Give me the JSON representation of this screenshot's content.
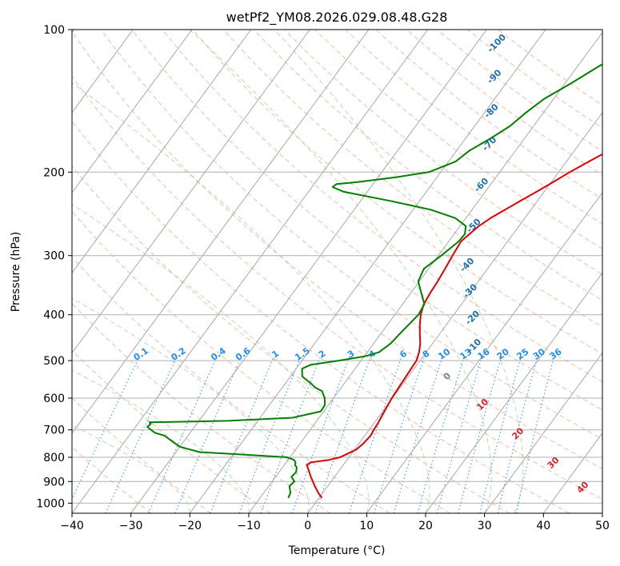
{
  "chart_data": {
    "type": "line",
    "title": "wetPf2_YM08.2026.029.08.48.G28",
    "xlabel": "Temperature (°C)",
    "ylabel": "Pressure (hPa)",
    "xlim": [
      -40,
      50
    ],
    "ylim": [
      1050,
      100
    ],
    "y_scale": "log",
    "grid": true,
    "x_ticks": [
      -40,
      -30,
      -20,
      -10,
      0,
      10,
      20,
      30,
      40,
      50
    ],
    "y_ticks": [
      100,
      200,
      300,
      400,
      500,
      600,
      700,
      800,
      900,
      1000
    ],
    "x_tick_labels": [
      "−40",
      "−30",
      "−20",
      "−10",
      "0",
      "10",
      "20",
      "30",
      "40",
      "50"
    ],
    "y_tick_labels": [
      "100",
      "200",
      "300",
      "400",
      "500",
      "600",
      "700",
      "800",
      "900",
      "1000"
    ],
    "series": [
      {
        "color": "#e00000",
        "pressure": [
          975,
          950,
          920,
          880,
          850,
          830,
          820,
          810,
          800,
          790,
          770,
          750,
          720,
          700,
          680,
          650,
          620,
          600,
          560,
          520,
          500,
          480,
          460,
          440,
          420,
          400,
          380,
          360,
          340,
          320,
          300,
          280,
          270,
          260,
          250,
          240,
          230,
          220,
          210,
          200,
          190,
          180,
          170,
          160,
          150,
          140,
          130,
          120,
          115,
          110,
          105,
          100
        ],
        "temperature": [
          0.5,
          -0.8,
          -2.2,
          -4.0,
          -5.3,
          -6.2,
          -5.8,
          -3.0,
          -1.5,
          -0.9,
          0.3,
          0.7,
          1.0,
          0.8,
          0.7,
          0.4,
          0.1,
          -0.1,
          -0.3,
          -0.5,
          -0.6,
          -1.2,
          -2.1,
          -3.3,
          -4.5,
          -5.6,
          -6.4,
          -6.7,
          -6.9,
          -7.2,
          -7.6,
          -7.9,
          -7.4,
          -6.8,
          -5.8,
          -4.4,
          -2.9,
          -1.3,
          0.3,
          1.9,
          3.8,
          5.9,
          8.2,
          10.5,
          13.8,
          17.5,
          21.0,
          24.5,
          25.9,
          26.9,
          28.3,
          29.7
        ]
      },
      {
        "color": "#007f00",
        "pressure": [
          975,
          950,
          920,
          900,
          880,
          860,
          840,
          830,
          820,
          810,
          800,
          790,
          780,
          760,
          740,
          720,
          710,
          700,
          690,
          680,
          675,
          670,
          660,
          640,
          620,
          600,
          580,
          570,
          560,
          540,
          520,
          510,
          500,
          490,
          480,
          460,
          440,
          420,
          400,
          380,
          360,
          340,
          320,
          300,
          280,
          270,
          260,
          250,
          240,
          230,
          220,
          215,
          212,
          210,
          205,
          200,
          190,
          180,
          170,
          160,
          150,
          140,
          130,
          120,
          110,
          100
        ],
        "dewpoint": [
          -5.2,
          -5.5,
          -6.5,
          -6.2,
          -7.3,
          -7.1,
          -7.6,
          -8.2,
          -8.4,
          -9.0,
          -10.5,
          -18,
          -26,
          -30,
          -32,
          -34,
          -36,
          -37,
          -38,
          -37.8,
          -38.2,
          -25,
          -14.5,
          -10.5,
          -10.6,
          -11.5,
          -12.8,
          -14.4,
          -15.5,
          -18.0,
          -19.0,
          -18.0,
          -13.8,
          -10.0,
          -8.0,
          -7.1,
          -6.8,
          -6.4,
          -6.0,
          -6.3,
          -8.2,
          -10.2,
          -10.8,
          -9.5,
          -8.3,
          -8.2,
          -9.0,
          -11.8,
          -17.0,
          -25.0,
          -34.0,
          -36.5,
          -36.2,
          -33.0,
          -27.0,
          -22.0,
          -18.8,
          -17.8,
          -15.8,
          -14.0,
          -13.0,
          -11.6,
          -9.0,
          -6.5,
          -3.5,
          -0.5
        ]
      }
    ],
    "annotations": {
      "mixing_ratio_labels": [
        "0.1",
        "0.2",
        "0.4",
        "0.6",
        "1",
        "1.5",
        "2",
        "3",
        "4",
        "6",
        "8",
        "10",
        "13",
        "16",
        "20",
        "25",
        "30",
        "36"
      ],
      "dry_adiabat_labels": [
        "-100",
        "-90",
        "-80",
        "-70",
        "-60",
        "-50",
        "-40",
        "-30",
        "-20",
        "-10"
      ],
      "moist_adiabat_labels": [
        "0",
        "10",
        "20",
        "30",
        "40"
      ]
    }
  }
}
